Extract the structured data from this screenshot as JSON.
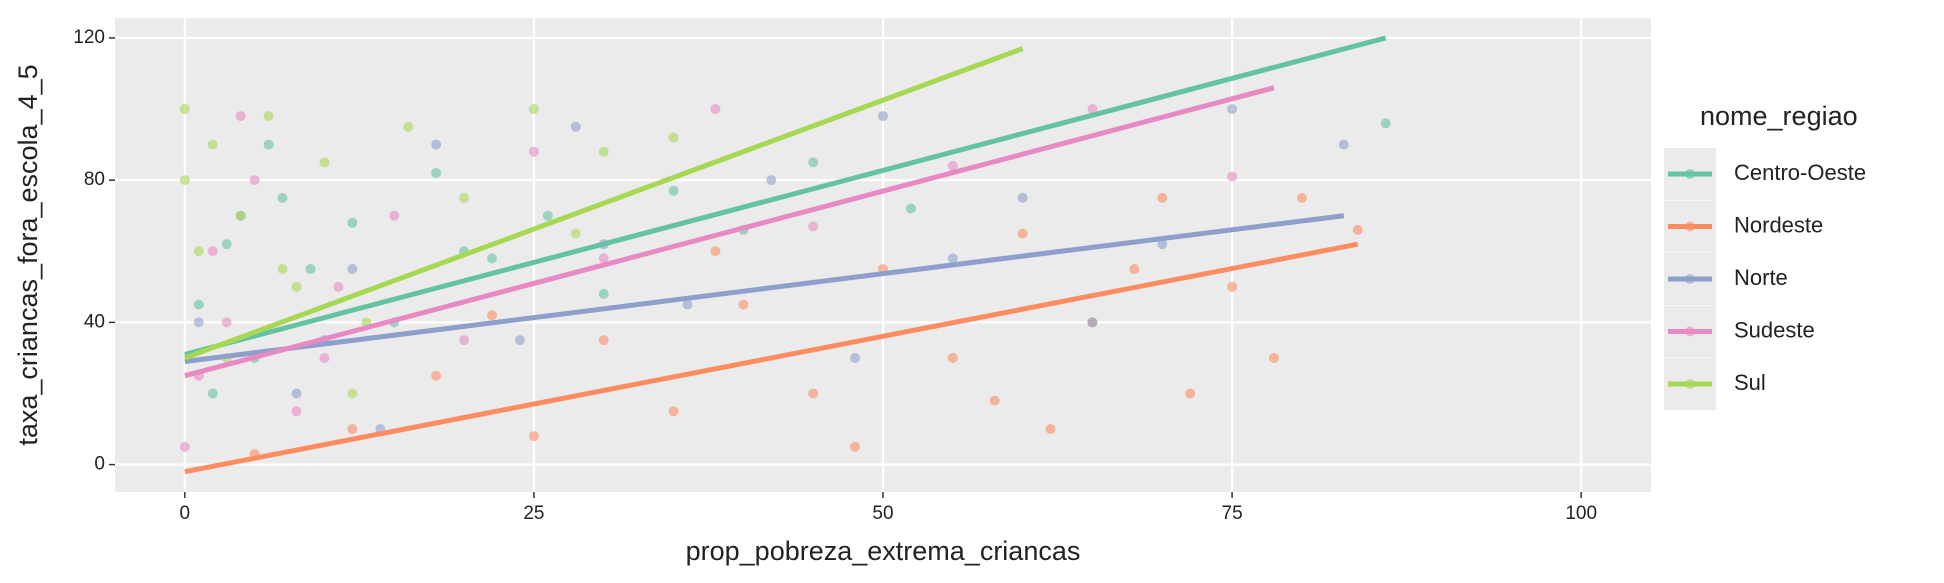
{
  "chart_data": {
    "type": "scatter",
    "x_label": "prop_pobreza_extrema_criancas",
    "y_label": "taxa_criancas_fora_escola_4_5",
    "legend_title": "nome_regiao",
    "xlim": [
      -5,
      105
    ],
    "xticks": [
      0,
      25,
      50,
      75,
      100
    ],
    "ylim": [
      -7.7,
      125.6
    ],
    "yticks": [
      0,
      40,
      80,
      120
    ],
    "grid": true,
    "legend_position": "right",
    "series": [
      {
        "name": "Centro-Oeste",
        "color": "#66c2a5",
        "x": [
          1,
          3,
          5,
          7,
          9,
          12,
          15,
          18,
          22,
          26,
          30,
          35,
          40,
          45,
          2,
          6,
          10,
          20,
          52,
          86
        ],
        "values": [
          45,
          62,
          30,
          75,
          55,
          68,
          40,
          82,
          58,
          70,
          48,
          77,
          66,
          85,
          20,
          90,
          35,
          60,
          72,
          96
        ],
        "fit_x": [
          0,
          86
        ],
        "fit_values": [
          31,
          120
        ]
      },
      {
        "name": "Nordeste",
        "color": "#fc8d62",
        "x": [
          5,
          12,
          18,
          25,
          30,
          35,
          40,
          45,
          50,
          55,
          60,
          62,
          65,
          70,
          72,
          75,
          78,
          80,
          84,
          22,
          38,
          48,
          58,
          68
        ],
        "values": [
          3,
          10,
          25,
          8,
          35,
          15,
          45,
          20,
          55,
          30,
          65,
          10,
          40,
          75,
          20,
          50,
          30,
          75,
          66,
          42,
          60,
          5,
          18,
          55
        ],
        "fit_x": [
          0,
          84
        ],
        "fit_values": [
          -2,
          62
        ]
      },
      {
        "name": "Norte",
        "color": "#8da0cb",
        "x": [
          1,
          4,
          8,
          12,
          18,
          24,
          30,
          36,
          42,
          48,
          55,
          60,
          65,
          70,
          75,
          83,
          14,
          28,
          50
        ],
        "values": [
          40,
          70,
          20,
          55,
          90,
          35,
          62,
          45,
          80,
          30,
          58,
          75,
          40,
          62,
          100,
          90,
          10,
          95,
          98
        ],
        "fit_x": [
          0,
          83
        ],
        "fit_values": [
          29,
          70
        ]
      },
      {
        "name": "Sudeste",
        "color": "#e78ac3",
        "x": [
          0,
          1,
          2,
          3,
          5,
          8,
          11,
          15,
          20,
          25,
          30,
          38,
          45,
          55,
          65,
          75,
          4,
          10
        ],
        "values": [
          5,
          25,
          60,
          40,
          80,
          15,
          50,
          70,
          35,
          88,
          58,
          100,
          67,
          84,
          100,
          81,
          98,
          30
        ],
        "fit_x": [
          0,
          78
        ],
        "fit_values": [
          25,
          106
        ]
      },
      {
        "name": "Sul",
        "color": "#a6d854",
        "x": [
          0,
          0,
          1,
          2,
          3,
          4,
          6,
          8,
          10,
          13,
          16,
          20,
          25,
          28,
          30,
          35,
          12,
          7
        ],
        "values": [
          100,
          80,
          60,
          90,
          30,
          70,
          98,
          50,
          85,
          40,
          95,
          75,
          100,
          65,
          88,
          92,
          20,
          55
        ],
        "fit_x": [
          0,
          60
        ],
        "fit_values": [
          30,
          117
        ]
      }
    ]
  }
}
